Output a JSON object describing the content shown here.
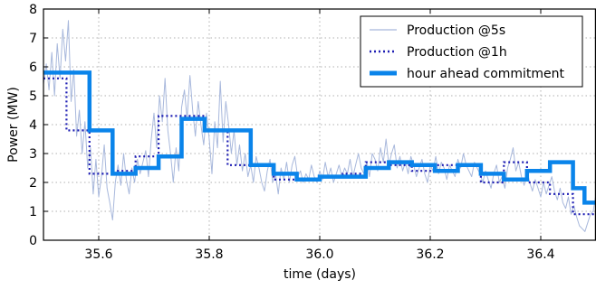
{
  "chart_data": {
    "type": "line",
    "title": "",
    "xlabel": "time (days)",
    "ylabel": "Power (MW)",
    "xlim": [
      35.5,
      36.5
    ],
    "ylim": [
      0,
      8
    ],
    "xticks": [
      35.6,
      35.8,
      36.0,
      36.2,
      36.4
    ],
    "xtick_labels": [
      "35.6",
      "35.8",
      "36.0",
      "36.2",
      "36.4"
    ],
    "yticks": [
      0,
      1,
      2,
      3,
      4,
      5,
      6,
      7,
      8
    ],
    "ytick_labels": [
      "0",
      "1",
      "2",
      "3",
      "4",
      "5",
      "6",
      "7",
      "8"
    ],
    "grid": true,
    "legend_position": "top-right",
    "series": [
      {
        "name": "Production @5s",
        "style": "thin-line",
        "color": "#a8b8dc",
        "x": [
          35.5,
          35.505,
          35.51,
          35.515,
          35.52,
          35.525,
          35.53,
          35.535,
          35.54,
          35.545,
          35.55,
          35.555,
          35.56,
          35.565,
          35.57,
          35.575,
          35.58,
          35.585,
          35.59,
          35.595,
          35.6,
          35.605,
          35.61,
          35.615,
          35.62,
          35.625,
          35.63,
          35.635,
          35.64,
          35.645,
          35.65,
          35.655,
          35.66,
          35.665,
          35.67,
          35.675,
          35.68,
          35.685,
          35.69,
          35.695,
          35.7,
          35.705,
          35.71,
          35.715,
          35.72,
          35.725,
          35.73,
          35.735,
          35.74,
          35.745,
          35.75,
          35.755,
          35.76,
          35.765,
          35.77,
          35.775,
          35.78,
          35.785,
          35.79,
          35.795,
          35.8,
          35.805,
          35.81,
          35.815,
          35.82,
          35.825,
          35.83,
          35.835,
          35.84,
          35.845,
          35.85,
          35.855,
          35.86,
          35.865,
          35.87,
          35.875,
          35.88,
          35.885,
          35.89,
          35.895,
          35.9,
          35.905,
          35.91,
          35.915,
          35.92,
          35.925,
          35.93,
          35.935,
          35.94,
          35.945,
          35.95,
          35.955,
          35.96,
          35.965,
          35.97,
          35.975,
          35.98,
          35.985,
          35.99,
          35.995,
          36.0,
          36.005,
          36.01,
          36.015,
          36.02,
          36.025,
          36.03,
          36.035,
          36.04,
          36.045,
          36.05,
          36.055,
          36.06,
          36.065,
          36.07,
          36.075,
          36.08,
          36.085,
          36.09,
          36.095,
          36.1,
          36.105,
          36.11,
          36.115,
          36.12,
          36.125,
          36.13,
          36.135,
          36.14,
          36.145,
          36.15,
          36.155,
          36.16,
          36.165,
          36.17,
          36.175,
          36.18,
          36.185,
          36.19,
          36.195,
          36.2,
          36.205,
          36.21,
          36.215,
          36.22,
          36.225,
          36.23,
          36.235,
          36.24,
          36.245,
          36.25,
          36.255,
          36.26,
          36.265,
          36.27,
          36.275,
          36.28,
          36.285,
          36.29,
          36.295,
          36.3,
          36.305,
          36.31,
          36.315,
          36.32,
          36.325,
          36.33,
          36.335,
          36.34,
          36.345,
          36.35,
          36.355,
          36.36,
          36.365,
          36.37,
          36.375,
          36.38,
          36.385,
          36.39,
          36.395,
          36.4,
          36.405,
          36.41,
          36.415,
          36.42,
          36.425,
          36.43,
          36.435,
          36.44,
          36.445,
          36.45,
          36.455,
          36.46,
          36.465,
          36.47,
          36.475,
          36.48,
          36.485,
          36.49,
          36.495,
          36.5
        ],
        "y": [
          5.4,
          6.1,
          5.2,
          6.5,
          5.0,
          6.8,
          5.6,
          7.3,
          6.2,
          7.6,
          4.8,
          5.9,
          3.6,
          4.5,
          3.0,
          4.1,
          2.5,
          3.2,
          1.6,
          2.8,
          1.5,
          2.2,
          3.3,
          1.8,
          1.3,
          0.7,
          2.0,
          2.6,
          1.9,
          3.0,
          2.1,
          1.6,
          2.5,
          2.0,
          2.8,
          2.3,
          2.7,
          3.1,
          2.2,
          3.5,
          4.4,
          3.2,
          5.0,
          4.1,
          5.6,
          3.8,
          3.0,
          2.0,
          3.2,
          2.4,
          4.6,
          5.2,
          4.2,
          5.7,
          4.5,
          3.6,
          4.8,
          4.0,
          3.3,
          4.4,
          3.5,
          2.3,
          4.1,
          3.2,
          5.5,
          3.4,
          4.8,
          4.0,
          3.0,
          3.8,
          2.6,
          3.3,
          2.4,
          3.0,
          2.2,
          2.6,
          2.0,
          2.9,
          2.5,
          2.0,
          1.7,
          2.4,
          2.8,
          2.0,
          2.3,
          1.6,
          2.5,
          2.1,
          2.7,
          2.0,
          2.6,
          2.9,
          2.2,
          2.4,
          2.0,
          2.3,
          2.1,
          2.6,
          2.2,
          2.0,
          2.4,
          2.1,
          2.7,
          2.2,
          2.5,
          2.0,
          2.3,
          2.6,
          2.2,
          2.5,
          2.3,
          2.8,
          2.2,
          2.6,
          3.0,
          2.5,
          2.3,
          2.7,
          2.2,
          3.0,
          2.8,
          2.4,
          3.2,
          2.7,
          3.5,
          2.6,
          3.0,
          3.3,
          2.5,
          2.9,
          2.4,
          2.7,
          2.3,
          2.9,
          2.6,
          2.2,
          2.5,
          2.8,
          2.3,
          2.0,
          2.6,
          2.4,
          2.9,
          2.3,
          2.7,
          2.5,
          2.1,
          2.6,
          2.4,
          2.2,
          2.8,
          2.5,
          3.0,
          2.6,
          2.4,
          2.2,
          2.7,
          2.5,
          2.3,
          2.0,
          2.4,
          2.1,
          1.8,
          2.3,
          2.6,
          2.0,
          2.2,
          1.8,
          2.5,
          2.8,
          3.2,
          2.4,
          2.7,
          2.2,
          1.9,
          2.4,
          2.0,
          1.7,
          2.1,
          1.8,
          1.5,
          2.0,
          1.6,
          1.9,
          2.2,
          1.7,
          1.4,
          1.8,
          1.3,
          1.1,
          1.5,
          0.9,
          1.2,
          0.8,
          0.5,
          0.4,
          0.3,
          0.6,
          0.9,
          1.0,
          1.6
        ]
      },
      {
        "name": "Production @1h",
        "style": "dotted-step",
        "color": "#1f1fb4",
        "x": [
          35.5,
          35.5417,
          35.5833,
          35.625,
          35.6667,
          35.7083,
          35.75,
          35.7917,
          35.8333,
          35.875,
          35.9167,
          35.9583,
          36.0,
          36.0417,
          36.0833,
          36.125,
          36.1667,
          36.2083,
          36.25,
          36.2917,
          36.3333,
          36.375,
          36.4167,
          36.4583
        ],
        "y": [
          5.6,
          3.8,
          2.3,
          2.4,
          2.9,
          4.3,
          4.3,
          3.8,
          2.6,
          2.6,
          2.1,
          2.1,
          2.2,
          2.3,
          2.7,
          2.6,
          2.4,
          2.6,
          2.6,
          2.0,
          2.7,
          2.0,
          1.6,
          0.9
        ],
        "x_end": 36.5
      },
      {
        "name": "hour ahead commitment",
        "style": "thick-step",
        "color": "#0a84ea",
        "x": [
          35.5,
          35.5833,
          35.625,
          35.6667,
          35.7083,
          35.75,
          35.7917,
          35.875,
          35.9167,
          35.9583,
          36.0,
          36.0833,
          36.125,
          36.1667,
          36.2083,
          36.25,
          36.2917,
          36.3333,
          36.375,
          36.4167,
          36.4583
        ],
        "y": [
          5.8,
          3.8,
          2.3,
          2.5,
          2.9,
          4.2,
          3.8,
          2.6,
          2.3,
          2.1,
          2.2,
          2.5,
          2.7,
          2.6,
          2.4,
          2.6,
          2.3,
          2.1,
          2.4,
          2.7,
          1.8
        ],
        "x_end": 36.5,
        "y_end": 1.3
      }
    ]
  }
}
